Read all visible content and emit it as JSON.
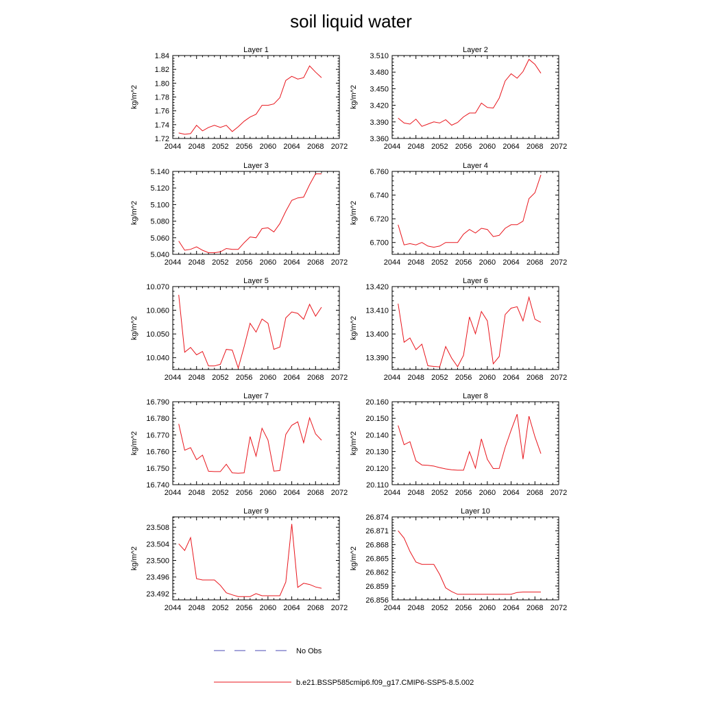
{
  "title": "soil liquid water",
  "legend": [
    {
      "label": "No Obs",
      "color": "#4a4ab4",
      "style": "dashed"
    },
    {
      "label": "b.e21.BSSP585cmip6.f09_g17.CMIP6-SSP5-8.5.002",
      "color": "#e8141b",
      "style": "solid"
    }
  ],
  "chart_data": [
    {
      "type": "line",
      "title": "Layer 1",
      "ylabel": "kg/m^2",
      "xlim": [
        2044,
        2072
      ],
      "xticks": [
        "2044",
        "2048",
        "2052",
        "2056",
        "2060",
        "2064",
        "2068",
        "2072"
      ],
      "ylim": [
        1.72,
        1.84
      ],
      "yticks": [
        "1.72",
        "1.74",
        "1.76",
        "1.78",
        "1.80",
        "1.82",
        "1.84"
      ],
      "x": [
        2045,
        2046,
        2047,
        2048,
        2049,
        2050,
        2051,
        2052,
        2053,
        2054,
        2055,
        2056,
        2057,
        2058,
        2059,
        2060,
        2061,
        2062,
        2063,
        2064,
        2065,
        2066,
        2067,
        2068,
        2069
      ],
      "series": [
        {
          "color": "#e8141b",
          "values": [
            1.728,
            1.726,
            1.727,
            1.739,
            1.731,
            1.736,
            1.739,
            1.736,
            1.739,
            1.73,
            1.737,
            1.745,
            1.751,
            1.755,
            1.768,
            1.768,
            1.77,
            1.779,
            1.804,
            1.81,
            1.806,
            1.808,
            1.825,
            1.816,
            1.808
          ]
        }
      ]
    },
    {
      "type": "line",
      "title": "Layer 2",
      "ylabel": "kg/m^2",
      "xlim": [
        2044,
        2072
      ],
      "xticks": [
        "2044",
        "2048",
        "2052",
        "2056",
        "2060",
        "2064",
        "2068",
        "2072"
      ],
      "ylim": [
        3.36,
        3.51
      ],
      "yticks": [
        "3.360",
        "3.390",
        "3.420",
        "3.450",
        "3.480",
        "3.510"
      ],
      "x": [
        2045,
        2046,
        2047,
        2048,
        2049,
        2050,
        2051,
        2052,
        2053,
        2054,
        2055,
        2056,
        2057,
        2058,
        2059,
        2060,
        2061,
        2062,
        2063,
        2064,
        2065,
        2066,
        2067,
        2068,
        2069
      ],
      "series": [
        {
          "color": "#e8141b",
          "values": [
            3.397,
            3.388,
            3.386,
            3.395,
            3.382,
            3.386,
            3.39,
            3.388,
            3.394,
            3.384,
            3.389,
            3.399,
            3.406,
            3.406,
            3.424,
            3.416,
            3.415,
            3.433,
            3.464,
            3.477,
            3.469,
            3.481,
            3.503,
            3.494,
            3.478
          ]
        }
      ]
    },
    {
      "type": "line",
      "title": "Layer 3",
      "ylabel": "kg/m^2",
      "xlim": [
        2044,
        2072
      ],
      "xticks": [
        "2044",
        "2048",
        "2052",
        "2056",
        "2060",
        "2064",
        "2068",
        "2072"
      ],
      "ylim": [
        5.04,
        5.14
      ],
      "yticks": [
        "5.040",
        "5.060",
        "5.080",
        "5.100",
        "5.120",
        "5.140"
      ],
      "x": [
        2045,
        2046,
        2047,
        2048,
        2049,
        2050,
        2051,
        2052,
        2053,
        2054,
        2055,
        2056,
        2057,
        2058,
        2059,
        2060,
        2061,
        2062,
        2063,
        2064,
        2065,
        2066,
        2067,
        2068,
        2069
      ],
      "series": [
        {
          "color": "#e8141b",
          "values": [
            5.056,
            5.045,
            5.046,
            5.049,
            5.045,
            5.042,
            5.042,
            5.043,
            5.047,
            5.046,
            5.046,
            5.054,
            5.061,
            5.06,
            5.071,
            5.072,
            5.067,
            5.077,
            5.092,
            5.105,
            5.108,
            5.109,
            5.124,
            5.137,
            5.137
          ]
        }
      ]
    },
    {
      "type": "line",
      "title": "Layer 4",
      "ylabel": "kg/m^2",
      "xlim": [
        2044,
        2072
      ],
      "xticks": [
        "2044",
        "2048",
        "2052",
        "2056",
        "2060",
        "2064",
        "2068",
        "2072"
      ],
      "ylim": [
        6.69,
        6.76
      ],
      "yticks": [
        "6.700",
        "6.720",
        "6.740",
        "6.760"
      ],
      "x": [
        2045,
        2046,
        2047,
        2048,
        2049,
        2050,
        2051,
        2052,
        2053,
        2054,
        2055,
        2056,
        2057,
        2058,
        2059,
        2060,
        2061,
        2062,
        2063,
        2064,
        2065,
        2066,
        2067,
        2068,
        2069
      ],
      "series": [
        {
          "color": "#e8141b",
          "values": [
            6.715,
            6.698,
            6.699,
            6.698,
            6.7,
            6.697,
            6.696,
            6.697,
            6.7,
            6.7,
            6.7,
            6.707,
            6.711,
            6.708,
            6.712,
            6.711,
            6.705,
            6.706,
            6.712,
            6.715,
            6.715,
            6.718,
            6.737,
            6.742,
            6.757
          ]
        }
      ]
    },
    {
      "type": "line",
      "title": "Layer 5",
      "ylabel": "kg/m^2",
      "xlim": [
        2044,
        2072
      ],
      "xticks": [
        "2044",
        "2048",
        "2052",
        "2056",
        "2060",
        "2064",
        "2068",
        "2072"
      ],
      "ylim": [
        10.035,
        10.07
      ],
      "yticks": [
        "10.040",
        "10.050",
        "10.060",
        "10.070"
      ],
      "x": [
        2045,
        2046,
        2047,
        2048,
        2049,
        2050,
        2051,
        2052,
        2053,
        2054,
        2055,
        2056,
        2057,
        2058,
        2059,
        2060,
        2061,
        2062,
        2063,
        2064,
        2065,
        2066,
        2067,
        2068,
        2069
      ],
      "series": [
        {
          "color": "#e8141b",
          "values": [
            10.0665,
            10.0423,
            10.0443,
            10.0412,
            10.0426,
            10.0365,
            10.0365,
            10.0372,
            10.0435,
            10.0432,
            10.0356,
            10.0446,
            10.0545,
            10.0508,
            10.0563,
            10.0545,
            10.0435,
            10.0445,
            10.0568,
            10.0593,
            10.0587,
            10.0562,
            10.0625,
            10.0575,
            10.0613
          ]
        }
      ]
    },
    {
      "type": "line",
      "title": "Layer 6",
      "ylabel": "kg/m^2",
      "xlim": [
        2044,
        2072
      ],
      "xticks": [
        "2044",
        "2048",
        "2052",
        "2056",
        "2060",
        "2064",
        "2068",
        "2072"
      ],
      "ylim": [
        13.385,
        13.42
      ],
      "yticks": [
        "13.390",
        "13.400",
        "13.410",
        "13.420"
      ],
      "x": [
        2045,
        2046,
        2047,
        2048,
        2049,
        2050,
        2051,
        2052,
        2053,
        2054,
        2055,
        2056,
        2057,
        2058,
        2059,
        2060,
        2061,
        2062,
        2063,
        2064,
        2065,
        2066,
        2067,
        2068,
        2069
      ],
      "series": [
        {
          "color": "#e8141b",
          "values": [
            13.4128,
            13.3965,
            13.3983,
            13.3934,
            13.3957,
            13.3866,
            13.3863,
            13.3861,
            13.3947,
            13.3898,
            13.3862,
            13.391,
            13.4072,
            13.4001,
            13.4095,
            13.4055,
            13.3874,
            13.3905,
            13.4082,
            13.4109,
            13.4115,
            13.4055,
            13.4155,
            13.4062,
            13.4049
          ]
        }
      ]
    },
    {
      "type": "line",
      "title": "Layer 7",
      "ylabel": "kg/m^2",
      "xlim": [
        2044,
        2072
      ],
      "xticks": [
        "2044",
        "2048",
        "2052",
        "2056",
        "2060",
        "2064",
        "2068",
        "2072"
      ],
      "ylim": [
        16.74,
        16.79
      ],
      "yticks": [
        "16.740",
        "16.750",
        "16.760",
        "16.770",
        "16.780",
        "16.790"
      ],
      "x": [
        2045,
        2046,
        2047,
        2048,
        2049,
        2050,
        2051,
        2052,
        2053,
        2054,
        2055,
        2056,
        2057,
        2058,
        2059,
        2060,
        2061,
        2062,
        2063,
        2064,
        2065,
        2066,
        2067,
        2068,
        2069
      ],
      "series": [
        {
          "color": "#e8141b",
          "values": [
            16.7766,
            16.7608,
            16.7623,
            16.7551,
            16.7578,
            16.7481,
            16.7479,
            16.7479,
            16.7523,
            16.7471,
            16.7469,
            16.7471,
            16.769,
            16.7572,
            16.774,
            16.7669,
            16.7482,
            16.7485,
            16.7703,
            16.7758,
            16.7779,
            16.7653,
            16.7803,
            16.7706,
            16.7668
          ]
        }
      ]
    },
    {
      "type": "line",
      "title": "Layer 8",
      "ylabel": "kg/m^2",
      "xlim": [
        2044,
        2072
      ],
      "xticks": [
        "2044",
        "2048",
        "2052",
        "2056",
        "2060",
        "2064",
        "2068",
        "2072"
      ],
      "ylim": [
        20.11,
        20.16
      ],
      "yticks": [
        "20.110",
        "20.120",
        "20.130",
        "20.140",
        "20.150",
        "20.160"
      ],
      "x": [
        2045,
        2046,
        2047,
        2048,
        2049,
        2050,
        2051,
        2052,
        2053,
        2054,
        2055,
        2056,
        2057,
        2058,
        2059,
        2060,
        2061,
        2062,
        2063,
        2064,
        2065,
        2066,
        2067,
        2068,
        2069
      ],
      "series": [
        {
          "color": "#e8141b",
          "values": [
            20.1457,
            20.1341,
            20.1359,
            20.1244,
            20.1219,
            20.1217,
            20.1212,
            20.1203,
            20.1195,
            20.119,
            20.1187,
            20.1187,
            20.1299,
            20.12,
            20.1376,
            20.1253,
            20.1197,
            20.1198,
            20.1325,
            20.1429,
            20.1525,
            20.1254,
            20.1513,
            20.1389,
            20.1287
          ]
        }
      ]
    },
    {
      "type": "line",
      "title": "Layer 9",
      "ylabel": "kg/m^2",
      "xlim": [
        2044,
        2072
      ],
      "xticks": [
        "2044",
        "2048",
        "2052",
        "2056",
        "2060",
        "2064",
        "2068",
        "2072"
      ],
      "ylim": [
        23.4905,
        23.5105
      ],
      "yticks": [
        "23.492",
        "23.496",
        "23.500",
        "23.504",
        "23.508"
      ],
      "x": [
        2045,
        2046,
        2047,
        2048,
        2049,
        2050,
        2051,
        2052,
        2053,
        2054,
        2055,
        2056,
        2057,
        2058,
        2059,
        2060,
        2061,
        2062,
        2063,
        2064,
        2065,
        2066,
        2067,
        2068,
        2069
      ],
      "series": [
        {
          "color": "#e8141b",
          "values": [
            23.504,
            23.5024,
            23.5055,
            23.4956,
            23.4953,
            23.4953,
            23.4953,
            23.494,
            23.4922,
            23.4917,
            23.4913,
            23.4913,
            23.4913,
            23.492,
            23.4915,
            23.4915,
            23.4915,
            23.4915,
            23.4948,
            23.5088,
            23.4935,
            23.4945,
            23.4942,
            23.4936,
            23.4933
          ]
        }
      ]
    },
    {
      "type": "line",
      "title": "Layer 10",
      "ylabel": "kg/m^2",
      "xlim": [
        2044,
        2072
      ],
      "xticks": [
        "2044",
        "2048",
        "2052",
        "2056",
        "2060",
        "2064",
        "2068",
        "2072"
      ],
      "ylim": [
        26.856,
        26.874
      ],
      "yticks": [
        "26.856",
        "26.859",
        "26.862",
        "26.865",
        "26.868",
        "26.871",
        "26.874"
      ],
      "x": [
        2045,
        2046,
        2047,
        2048,
        2049,
        2050,
        2051,
        2052,
        2053,
        2054,
        2055,
        2056,
        2057,
        2058,
        2059,
        2060,
        2061,
        2062,
        2063,
        2064,
        2065,
        2066,
        2067,
        2068,
        2069
      ],
      "series": [
        {
          "color": "#e8141b",
          "values": [
            26.871,
            26.8694,
            26.8665,
            26.8642,
            26.8637,
            26.8637,
            26.8637,
            26.8615,
            26.8586,
            26.8578,
            26.8572,
            26.8572,
            26.8572,
            26.8572,
            26.8572,
            26.8572,
            26.8572,
            26.8572,
            26.8572,
            26.8572,
            26.8576,
            26.8577,
            26.8577,
            26.8577,
            26.8577
          ]
        }
      ]
    }
  ]
}
